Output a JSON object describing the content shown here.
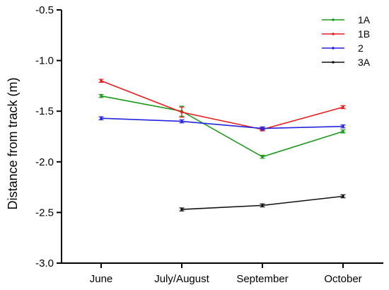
{
  "chart_data": {
    "type": "line",
    "title": "",
    "xlabel": "",
    "ylabel": "Distance from track (m)",
    "categories": [
      "June",
      "July/August",
      "September",
      "October"
    ],
    "ylim": [
      -3.0,
      -0.5
    ],
    "yticks": [
      -0.5,
      -1.0,
      -1.5,
      -2.0,
      -2.5,
      -3.0
    ],
    "ytick_labels": [
      "-0.5",
      "-1.0",
      "-1.5",
      "-2.0",
      "-2.5",
      "-3.0"
    ],
    "grid": false,
    "legend_position": "top-right",
    "series": [
      {
        "name": "1A",
        "color": "#1a9a1a",
        "values": [
          -1.35,
          -1.5,
          -1.95,
          -1.7
        ],
        "errors": [
          0.015,
          0.05,
          0.015,
          0.015
        ]
      },
      {
        "name": "1B",
        "color": "#e81c1c",
        "values": [
          -1.2,
          -1.51,
          -1.68,
          -1.46
        ],
        "errors": [
          0.015,
          0.05,
          0.015,
          0.015
        ]
      },
      {
        "name": "2",
        "color": "#2323e0",
        "values": [
          -1.57,
          -1.6,
          -1.67,
          -1.65
        ],
        "errors": [
          0.015,
          0.015,
          0.015,
          0.015
        ]
      },
      {
        "name": "3A",
        "color": "#111111",
        "values": [
          null,
          -2.47,
          -2.43,
          -2.34
        ],
        "errors": [
          null,
          0.015,
          0.015,
          0.015
        ]
      }
    ]
  }
}
